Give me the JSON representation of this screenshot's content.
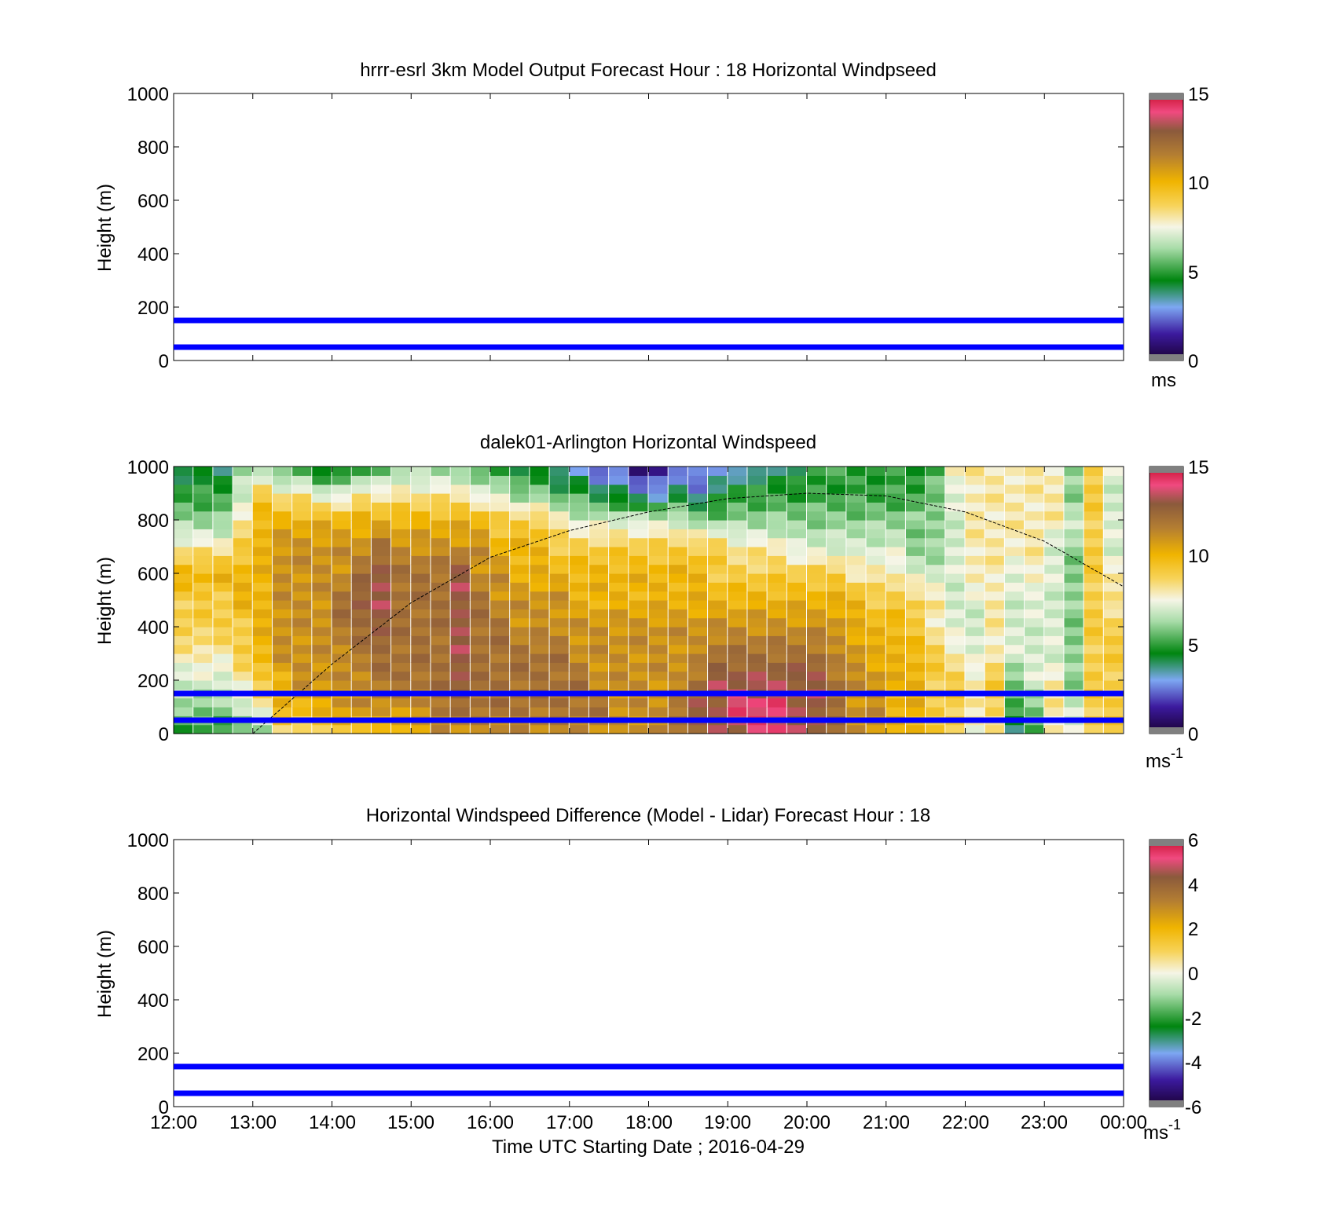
{
  "figure": {
    "panels": [
      {
        "title": "hrrr-esrl 3km Model Output   Forecast Hour : 18 Horizontal Windpseed",
        "ylabel": "Height (m)",
        "colorbar_unit": "ms",
        "colorbar_unit_sup": "",
        "colorbar_ticks": [
          "15",
          "10",
          "5",
          "0"
        ]
      },
      {
        "title": "dalek01-Arlington  Horizontal Windspeed",
        "ylabel": "Height (m)",
        "colorbar_unit": "ms",
        "colorbar_unit_sup": "-1",
        "colorbar_ticks": [
          "15",
          "10",
          "5",
          "0"
        ]
      },
      {
        "title": "Horizontal Windspeed Difference (Model - Lidar) Forecast Hour : 18",
        "ylabel": "Height (m)",
        "colorbar_unit": "ms",
        "colorbar_unit_sup": "-1",
        "colorbar_ticks": [
          "6",
          "4",
          "2",
          "0",
          "-2",
          "-4",
          "-6"
        ]
      }
    ],
    "y_ticks": [
      "1000",
      "800",
      "600",
      "400",
      "200",
      "0"
    ],
    "x_ticks": [
      "12:00",
      "13:00",
      "14:00",
      "15:00",
      "16:00",
      "17:00",
      "18:00",
      "19:00",
      "20:00",
      "21:00",
      "22:00",
      "23:00",
      "00:00"
    ],
    "xlabel": "Time UTC  Starting Date ; 2016-04-29"
  },
  "chart_data": [
    {
      "type": "heatmap",
      "title": "hrrr-esrl 3km Model Output   Forecast Hour : 18 Horizontal Windpseed",
      "xlabel": "",
      "ylabel": "Height (m)",
      "x_range": [
        "12:00",
        "00:00"
      ],
      "ylim": [
        0,
        1000
      ],
      "clim": [
        0,
        15
      ],
      "colorbar_unit": "ms",
      "horizontal_lines": [
        {
          "y": 150,
          "color": "#0000ff"
        },
        {
          "y": 50,
          "color": "#0000ff"
        }
      ],
      "values": []
    },
    {
      "type": "heatmap",
      "title": "dalek01-Arlington  Horizontal Windspeed",
      "xlabel": "",
      "ylabel": "Height (m)",
      "x_range": [
        "12:00",
        "00:00"
      ],
      "ylim": [
        0,
        1000
      ],
      "clim": [
        0,
        15
      ],
      "colorbar_unit": "ms-1",
      "horizontal_lines": [
        {
          "y": 150,
          "color": "#0000ff"
        },
        {
          "y": 50,
          "color": "#0000ff"
        }
      ],
      "dashed_curve": {
        "x": [
          13.0,
          14.0,
          15.0,
          16.0,
          17.0,
          18.0,
          19.0,
          20.0,
          21.0,
          22.0,
          23.0,
          24.0
        ],
        "y": [
          0,
          260,
          490,
          660,
          760,
          830,
          880,
          900,
          890,
          830,
          720,
          550
        ]
      },
      "columns_x_hours": [
        12.0,
        12.25,
        12.5,
        12.75,
        13.0,
        13.25,
        13.5,
        13.75,
        14.0,
        14.25,
        14.5,
        14.75,
        15.0,
        15.25,
        15.5,
        15.75,
        16.0,
        16.25,
        16.5,
        16.75,
        17.0,
        17.25,
        17.5,
        17.75,
        18.0,
        18.25,
        18.5,
        18.75,
        19.0,
        19.25,
        19.5,
        19.75,
        20.0,
        20.25,
        20.5,
        20.75,
        21.0,
        21.25,
        21.5,
        21.75,
        22.0,
        22.25,
        22.5,
        22.75,
        23.0,
        23.25,
        23.5,
        23.75
      ],
      "rows_height_m": [
        0,
        100,
        200,
        300,
        400,
        500,
        600,
        700,
        800,
        900,
        1000
      ],
      "values": [
        [
          5,
          6,
          7,
          8,
          9,
          9,
          10,
          8,
          6,
          5,
          4
        ],
        [
          5,
          6,
          7,
          8,
          9,
          9,
          10,
          8,
          6,
          5,
          4
        ],
        [
          5,
          6,
          7,
          8,
          9,
          9,
          10,
          8,
          6,
          5,
          4
        ],
        [
          5,
          7,
          8,
          9,
          9,
          10,
          10,
          9,
          8,
          7,
          6
        ],
        [
          6,
          8,
          9,
          10,
          10,
          10,
          10,
          10,
          10,
          9,
          6
        ],
        [
          8,
          10,
          10,
          11,
          11,
          11,
          11,
          11,
          10,
          8,
          5
        ],
        [
          8,
          10,
          11,
          11,
          11,
          11,
          11,
          11,
          10,
          8,
          5
        ],
        [
          9,
          10,
          11,
          11,
          11,
          11,
          11,
          11,
          10,
          7,
          4
        ],
        [
          9,
          11,
          11,
          11,
          12,
          12,
          11,
          11,
          10,
          7,
          4
        ],
        [
          9,
          11,
          11,
          12,
          12,
          13,
          12,
          11,
          10,
          8,
          5
        ],
        [
          9,
          11,
          12,
          12,
          13,
          13,
          13,
          12,
          10,
          8,
          5
        ],
        [
          10,
          11,
          12,
          12,
          12,
          12,
          12,
          11,
          10,
          8,
          6
        ],
        [
          10,
          11,
          12,
          12,
          12,
          12,
          12,
          11,
          10,
          8,
          6
        ],
        [
          11,
          12,
          12,
          12,
          12,
          12,
          12,
          11,
          10,
          8,
          6
        ],
        [
          11,
          12,
          13,
          13,
          13,
          13,
          13,
          11,
          10,
          8,
          6
        ],
        [
          11,
          12,
          12,
          12,
          12,
          12,
          11,
          11,
          10,
          7,
          5
        ],
        [
          11,
          12,
          12,
          12,
          12,
          11,
          11,
          10,
          9,
          7,
          5
        ],
        [
          11,
          12,
          12,
          12,
          11,
          11,
          10,
          10,
          9,
          6,
          4
        ],
        [
          11,
          12,
          12,
          12,
          11,
          11,
          10,
          10,
          9,
          6,
          4
        ],
        [
          11,
          12,
          12,
          12,
          11,
          11,
          10,
          9,
          8,
          5,
          3
        ],
        [
          11,
          12,
          12,
          11,
          11,
          10,
          10,
          9,
          7,
          5,
          3
        ],
        [
          11,
          12,
          11,
          11,
          11,
          10,
          10,
          9,
          7,
          4,
          2
        ],
        [
          11,
          11,
          11,
          11,
          11,
          10,
          10,
          9,
          7,
          4,
          2
        ],
        [
          11,
          11,
          11,
          11,
          11,
          10,
          10,
          9,
          7,
          3,
          1
        ],
        [
          11,
          11,
          11,
          11,
          11,
          10,
          10,
          9,
          7,
          3,
          1
        ],
        [
          12,
          12,
          11,
          11,
          11,
          10,
          10,
          9,
          7,
          4,
          2
        ],
        [
          12,
          13,
          12,
          11,
          11,
          10,
          10,
          9,
          6,
          3,
          2
        ],
        [
          13,
          13,
          13,
          12,
          11,
          10,
          9,
          9,
          6,
          4,
          3
        ],
        [
          13,
          14,
          13,
          12,
          11,
          10,
          9,
          8,
          6,
          5,
          3
        ],
        [
          14,
          14,
          13,
          12,
          11,
          10,
          9,
          8,
          6,
          5,
          3
        ],
        [
          14,
          14,
          13,
          12,
          11,
          10,
          9,
          8,
          6,
          5,
          4
        ],
        [
          13,
          13,
          13,
          12,
          11,
          10,
          9,
          7,
          6,
          5,
          4
        ],
        [
          13,
          13,
          13,
          12,
          11,
          10,
          9,
          7,
          6,
          5,
          5
        ],
        [
          12,
          12,
          12,
          11,
          11,
          10,
          9,
          7,
          6,
          5,
          5
        ],
        [
          11,
          11,
          11,
          11,
          10,
          10,
          8,
          7,
          6,
          5,
          5
        ],
        [
          11,
          11,
          11,
          10,
          10,
          9,
          8,
          7,
          6,
          5,
          5
        ],
        [
          10,
          10,
          10,
          10,
          10,
          9,
          8,
          7,
          6,
          5,
          5
        ],
        [
          10,
          10,
          10,
          10,
          9,
          9,
          7,
          6,
          6,
          5,
          5
        ],
        [
          9,
          9,
          9,
          9,
          8,
          8,
          7,
          6,
          6,
          6,
          5
        ],
        [
          9,
          9,
          9,
          8,
          7,
          7,
          7,
          7,
          7,
          7,
          8
        ],
        [
          7,
          8,
          8,
          7,
          7,
          7,
          8,
          8,
          8,
          8,
          8
        ],
        [
          8,
          9,
          9,
          8,
          8,
          8,
          8,
          8,
          8,
          8,
          8
        ],
        [
          4,
          5,
          6,
          7,
          7,
          7,
          7,
          8,
          8,
          8,
          8
        ],
        [
          5,
          6,
          7,
          7,
          7,
          7,
          8,
          8,
          8,
          8,
          8
        ],
        [
          8,
          8,
          8,
          7,
          7,
          7,
          7,
          7,
          8,
          8,
          8
        ],
        [
          7,
          7,
          6,
          6,
          6,
          6,
          6,
          6,
          7,
          6,
          6
        ],
        [
          9,
          9,
          9,
          9,
          9,
          9,
          9,
          9,
          9,
          9,
          9
        ],
        [
          9,
          9,
          9,
          9,
          9,
          8,
          8,
          7,
          7,
          7,
          7
        ]
      ]
    },
    {
      "type": "heatmap",
      "title": "Horizontal Windspeed Difference (Model - Lidar) Forecast Hour : 18",
      "xlabel": "Time UTC  Starting Date ; 2016-04-29",
      "ylabel": "Height (m)",
      "x_range": [
        "12:00",
        "00:00"
      ],
      "ylim": [
        0,
        1000
      ],
      "clim": [
        -6,
        6
      ],
      "colorbar_unit": "ms-1",
      "horizontal_lines": [
        {
          "y": 150,
          "color": "#0000ff"
        },
        {
          "y": 50,
          "color": "#0000ff"
        }
      ],
      "values": []
    }
  ]
}
